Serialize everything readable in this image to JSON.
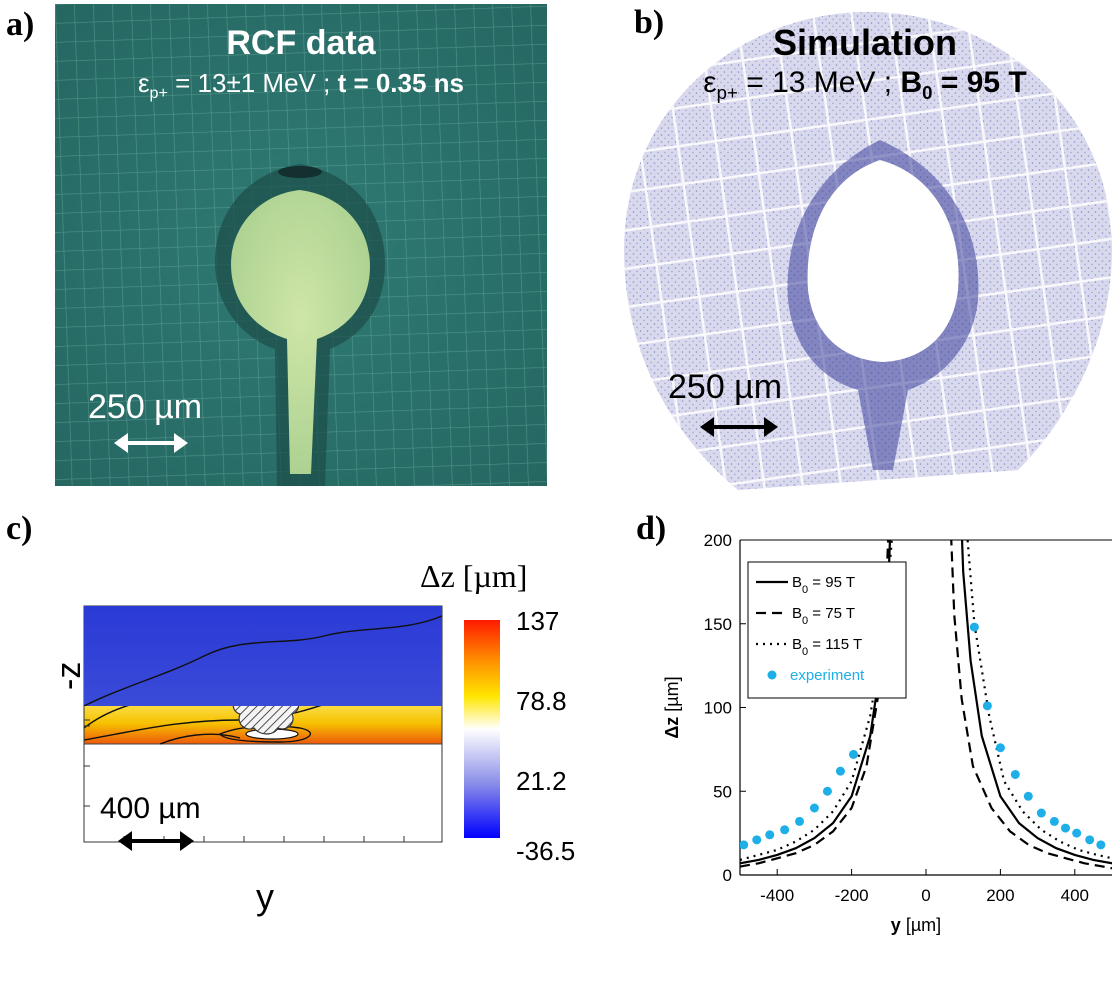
{
  "panel_a": {
    "label": "a)",
    "title": "RCF data",
    "subtitle_prefix": "ε",
    "subtitle_sub": "p+",
    "subtitle_mid": " = 13±1 MeV ;  ",
    "subtitle_bold": "t = 0.35 ns",
    "scale_text": "250 µm"
  },
  "panel_b": {
    "label": "b)",
    "title": "Simulation",
    "subtitle_prefix": "ε",
    "subtitle_sub": "p+",
    "subtitle_mid": " = 13 MeV ;  ",
    "subtitle_bold_pre": "B",
    "subtitle_bold_sub": "0",
    "subtitle_bold_post": " = 95 T",
    "scale_text": "250 µm"
  },
  "panel_c": {
    "label": "c)",
    "colorbar_title": "Δz [µm]",
    "colorbar_ticks": [
      "137",
      "78.8",
      "21.2",
      "-36.5"
    ],
    "ylabel": "-z",
    "xlabel": "y",
    "scale_text": "400 µm"
  },
  "panel_d": {
    "label": "d)",
    "chart_data": {
      "type": "line",
      "xlabel_bold": "y",
      "xlabel_rest": " [µm]",
      "ylabel_bold": "Δz",
      "ylabel_rest": " [µm]",
      "xlim": [
        -500,
        500
      ],
      "ylim": [
        0,
        200
      ],
      "xticks": [
        -400,
        -200,
        0,
        200,
        400
      ],
      "xtick_labels": [
        "-400",
        "-200",
        "0",
        "200",
        "400"
      ],
      "yticks": [
        0,
        50,
        100,
        150,
        200
      ],
      "ytick_labels": [
        "0",
        "50",
        "100",
        "150",
        "200"
      ],
      "legend_position": "top-left",
      "series": [
        {
          "name_pre": "B",
          "name_sub": "0",
          "name_post": " = 95 T",
          "style": "solid",
          "a": 6000,
          "y0": 84,
          "left_x": [
            -500,
            -450,
            -400,
            -350,
            -300,
            -250,
            -200,
            -150,
            -120,
            -100,
            -90,
            -84
          ],
          "left_y": [
            7,
            9,
            12,
            16,
            22,
            31,
            47,
            83,
            128,
            181,
            242,
            300
          ],
          "right_x": [
            84,
            90,
            100,
            120,
            150,
            200,
            250,
            300,
            350,
            400,
            450,
            500
          ],
          "right_y": [
            300,
            242,
            181,
            128,
            83,
            47,
            31,
            22,
            16,
            12,
            9,
            7
          ]
        },
        {
          "name_pre": "B",
          "name_sub": "0",
          "name_post": " = 75 T",
          "style": "dashed",
          "left_x": [
            -500,
            -450,
            -400,
            -350,
            -300,
            -250,
            -200,
            -160,
            -130,
            -110,
            -100,
            -94
          ],
          "left_y": [
            5,
            7,
            10,
            13,
            18,
            26,
            40,
            65,
            105,
            155,
            210,
            260
          ],
          "right_x": [
            60,
            66,
            76,
            96,
            126,
            176,
            226,
            276,
            326,
            376,
            426,
            476,
            500
          ],
          "right_y": [
            260,
            210,
            155,
            105,
            65,
            40,
            26,
            18,
            13,
            10,
            7,
            5,
            4
          ]
        },
        {
          "name_pre": "B",
          "name_sub": "0",
          "name_post": " = 115 T",
          "style": "dotted",
          "left_x": [
            -500,
            -450,
            -400,
            -350,
            -300,
            -250,
            -200,
            -150,
            -110,
            -90,
            -80,
            -74
          ],
          "left_y": [
            9,
            12,
            15,
            20,
            27,
            38,
            56,
            95,
            150,
            205,
            255,
            300
          ],
          "right_x": [
            94,
            100,
            110,
            130,
            170,
            210,
            260,
            310,
            360,
            410,
            460,
            500
          ],
          "right_y": [
            300,
            255,
            205,
            150,
            95,
            56,
            38,
            27,
            20,
            15,
            12,
            10
          ]
        },
        {
          "name": "experiment",
          "style": "markers",
          "color": "#1eaee8",
          "x": [
            -490,
            -455,
            -420,
            -380,
            -340,
            -300,
            -265,
            -230,
            -195,
            130,
            165,
            200,
            240,
            275,
            310,
            345,
            375,
            405,
            440,
            470
          ],
          "y": [
            18,
            21,
            24,
            27,
            32,
            40,
            50,
            62,
            72,
            148,
            101,
            76,
            60,
            47,
            37,
            32,
            28,
            25,
            21,
            18
          ]
        }
      ]
    }
  }
}
